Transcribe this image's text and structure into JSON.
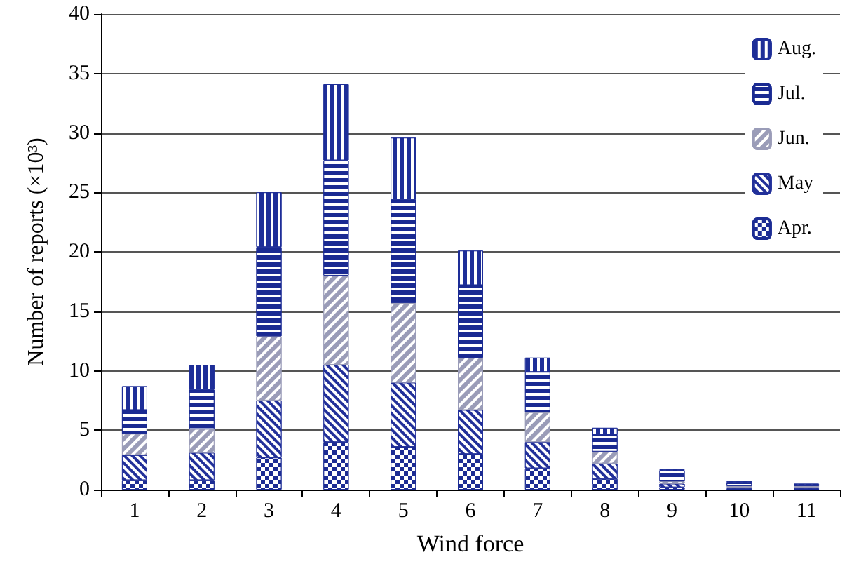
{
  "chart_data": {
    "type": "bar",
    "stacked": true,
    "xlabel": "Wind force",
    "ylabel": "Number of reports (×10³)",
    "categories": [
      "1",
      "2",
      "3",
      "4",
      "5",
      "6",
      "7",
      "8",
      "9",
      "10",
      "11"
    ],
    "series": [
      {
        "name": "Apr.",
        "color": "#1c2c94",
        "values": [
          0.8,
          0.8,
          2.7,
          4.0,
          3.6,
          3.0,
          1.8,
          0.9,
          0.2,
          0.1,
          0.1
        ]
      },
      {
        "name": "May",
        "color": "#22309a",
        "values": [
          2.1,
          2.3,
          4.8,
          6.5,
          5.4,
          3.7,
          2.2,
          1.3,
          0.3,
          0.1,
          0.1
        ]
      },
      {
        "name": "Jun.",
        "color": "#9a9cb8",
        "values": [
          1.8,
          2.0,
          5.4,
          7.5,
          6.7,
          4.4,
          2.5,
          1.0,
          0.2,
          0.1,
          0.1
        ]
      },
      {
        "name": "Jul.",
        "color": "#1a2a92",
        "values": [
          2.0,
          3.3,
          7.5,
          9.7,
          8.7,
          6.1,
          3.4,
          1.4,
          0.9,
          0.3,
          0.1
        ]
      },
      {
        "name": "Aug.",
        "color": "#1e2e98",
        "values": [
          2.0,
          2.1,
          4.6,
          6.4,
          5.2,
          2.9,
          1.2,
          0.6,
          0.1,
          0.1,
          0.1
        ]
      }
    ],
    "ylim": [
      0,
      40
    ],
    "yticks": [
      0,
      5,
      10,
      15,
      20,
      25,
      30,
      35,
      40
    ],
    "grid": "y",
    "legend": "top right"
  }
}
